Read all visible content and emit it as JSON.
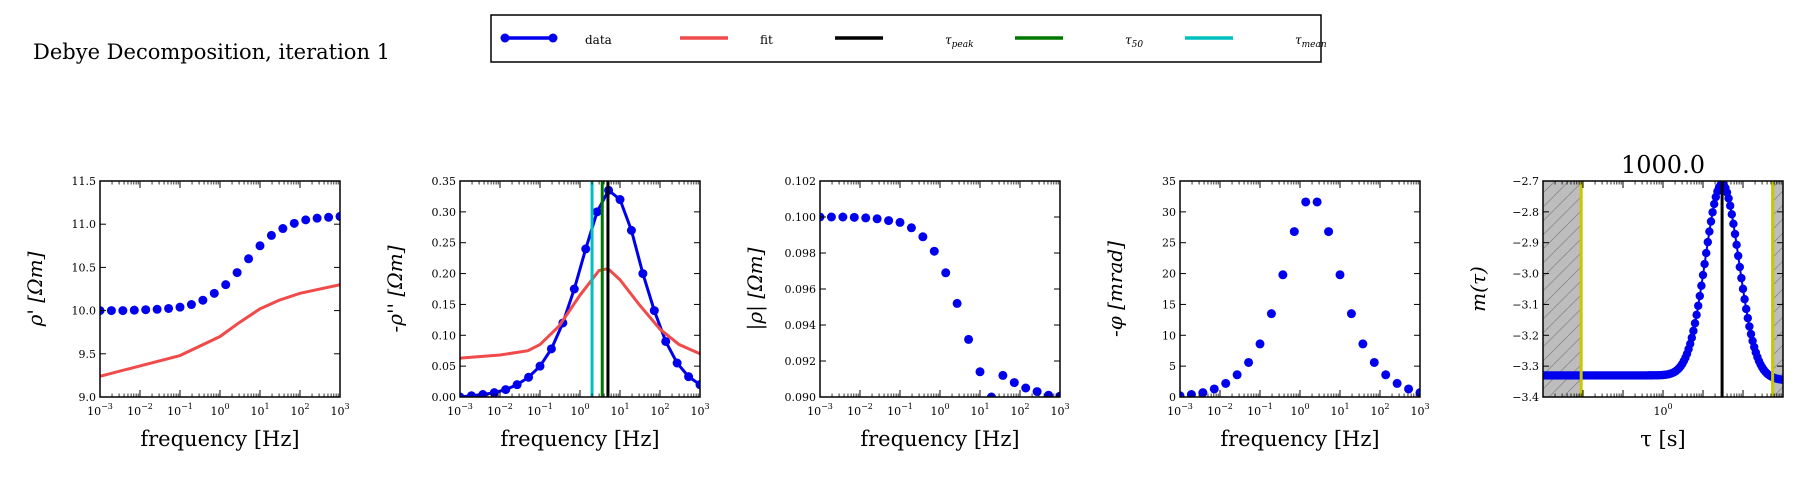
{
  "figure": {
    "suptitle": "Debye Decomposition, iteration 1"
  },
  "legend": {
    "entries": [
      {
        "key": "data",
        "label": "data",
        "color": "#0000ee",
        "style": "line-marker"
      },
      {
        "key": "fit",
        "label": "fit",
        "color": "#f04a4a",
        "style": "line"
      },
      {
        "key": "tau_peak",
        "label": "τpeak",
        "base": "τ",
        "sub": "peak",
        "color": "#000000",
        "style": "line"
      },
      {
        "key": "tau_50",
        "label": "τ50",
        "base": "τ",
        "sub": "50",
        "color": "#007800",
        "style": "line"
      },
      {
        "key": "tau_mean",
        "label": "τmean",
        "base": "τ",
        "sub": "mean",
        "color": "#00c0c0",
        "style": "line"
      }
    ]
  },
  "chart_data": [
    {
      "type": "scatter",
      "name": "rho_real",
      "xlabel": "frequency [Hz]",
      "ylabel": "ρ' [Ωm]",
      "xscale": "log",
      "xlim": [
        0.001,
        1000
      ],
      "ylim": [
        9.0,
        11.5
      ],
      "yticks": [
        9.0,
        9.5,
        10.0,
        10.5,
        11.0,
        11.5
      ],
      "ytick_labels": [
        "9.0",
        "9.5",
        "10.0",
        "10.5",
        "11.0",
        "11.5"
      ],
      "series": [
        {
          "key": "data",
          "style": "markers",
          "color": "#0000ee",
          "x": [
            0.001,
            0.00193,
            0.00373,
            0.0072,
            0.0139,
            0.0268,
            0.0518,
            0.1,
            0.193,
            0.373,
            0.72,
            1.39,
            2.68,
            5.18,
            10.0,
            19.3,
            37.3,
            72.0,
            139,
            268,
            518,
            1000
          ],
          "y": [
            10.0,
            10.0,
            10.0,
            10.005,
            10.01,
            10.015,
            10.025,
            10.04,
            10.07,
            10.12,
            10.2,
            10.3,
            10.44,
            10.6,
            10.75,
            10.87,
            10.95,
            11.01,
            11.05,
            11.07,
            11.08,
            11.09
          ]
        },
        {
          "key": "fit",
          "style": "line",
          "color": "#f04a4a",
          "x": [
            0.001,
            0.01,
            0.1,
            1,
            3,
            10,
            30,
            100,
            1000
          ],
          "y": [
            9.24,
            9.36,
            9.48,
            9.7,
            9.86,
            10.02,
            10.12,
            10.2,
            10.3
          ]
        }
      ]
    },
    {
      "type": "line",
      "name": "rho_imag",
      "xlabel": "frequency [Hz]",
      "ylabel": "-ρ'' [Ωm]",
      "xscale": "log",
      "xlim": [
        0.001,
        1000
      ],
      "ylim": [
        0.0,
        0.35
      ],
      "yticks": [
        0.0,
        0.05,
        0.1,
        0.15,
        0.2,
        0.25,
        0.3,
        0.35
      ],
      "ytick_labels": [
        "0.00",
        "0.05",
        "0.10",
        "0.15",
        "0.20",
        "0.25",
        "0.30",
        "0.35"
      ],
      "series": [
        {
          "key": "data",
          "style": "line-markers",
          "color": "#0000ee",
          "x": [
            0.001,
            0.00193,
            0.00373,
            0.0072,
            0.0139,
            0.0268,
            0.0518,
            0.1,
            0.193,
            0.373,
            0.72,
            1.39,
            2.68,
            5.18,
            10.0,
            19.3,
            37.3,
            72.0,
            139,
            268,
            518,
            1000
          ],
          "y": [
            0.0,
            0.002,
            0.004,
            0.007,
            0.012,
            0.02,
            0.032,
            0.05,
            0.078,
            0.12,
            0.175,
            0.24,
            0.3,
            0.335,
            0.32,
            0.27,
            0.2,
            0.14,
            0.09,
            0.055,
            0.033,
            0.02
          ]
        },
        {
          "key": "fit",
          "style": "line",
          "color": "#f04a4a",
          "x": [
            0.001,
            0.01,
            0.05,
            0.1,
            0.3,
            1,
            3,
            5,
            10,
            30,
            100,
            300,
            1000
          ],
          "y": [
            0.063,
            0.068,
            0.075,
            0.085,
            0.115,
            0.165,
            0.205,
            0.208,
            0.19,
            0.15,
            0.11,
            0.085,
            0.07
          ]
        }
      ],
      "vlines": [
        {
          "key": "tau_mean",
          "x": 2.0,
          "color": "#00c0c0"
        },
        {
          "key": "tau_50",
          "x": 3.6,
          "color": "#007800"
        },
        {
          "key": "tau_peak",
          "x": 5.0,
          "color": "#000000"
        }
      ]
    },
    {
      "type": "scatter",
      "name": "rho_abs",
      "xlabel": "frequency [Hz]",
      "ylabel": "|ρ| [Ωm]",
      "xscale": "log",
      "xlim": [
        0.001,
        1000
      ],
      "ylim": [
        0.09,
        0.102
      ],
      "yticks": [
        0.09,
        0.092,
        0.094,
        0.096,
        0.098,
        0.1,
        0.102
      ],
      "ytick_labels": [
        "0.090",
        "0.092",
        "0.094",
        "0.096",
        "0.098",
        "0.100",
        "0.102"
      ],
      "series": [
        {
          "key": "data",
          "style": "markers",
          "color": "#0000ee",
          "x": [
            0.001,
            0.00193,
            0.00373,
            0.0072,
            0.0139,
            0.0268,
            0.0518,
            0.1,
            0.193,
            0.373,
            0.72,
            1.39,
            2.68,
            5.18,
            10.0,
            19.3,
            37.3,
            72.0,
            139,
            268,
            518,
            1000
          ],
          "y": [
            0.1,
            0.1,
            0.1,
            0.09998,
            0.09995,
            0.0999,
            0.0998,
            0.0997,
            0.0994,
            0.0989,
            0.0981,
            0.0969,
            0.0952,
            0.0932,
            0.0914,
            0.09,
            0.0912,
            0.0908,
            0.0905,
            0.0903,
            0.0901,
            0.09005
          ]
        }
      ]
    },
    {
      "type": "scatter",
      "name": "phase",
      "xlabel": "frequency [Hz]",
      "ylabel": "-φ [mrad]",
      "xscale": "log",
      "xlim": [
        0.001,
        1000
      ],
      "ylim": [
        0,
        35
      ],
      "yticks": [
        0,
        5,
        10,
        15,
        20,
        25,
        30,
        35
      ],
      "ytick_labels": [
        "0",
        "5",
        "10",
        "15",
        "20",
        "25",
        "30",
        "35"
      ],
      "series": [
        {
          "key": "data",
          "style": "markers",
          "color": "#0000ee",
          "x": [
            0.001,
            0.00193,
            0.00373,
            0.0072,
            0.0139,
            0.0268,
            0.0518,
            0.1,
            0.193,
            0.373,
            0.72,
            1.39,
            2.68,
            5.18,
            10.0,
            19.3,
            37.3,
            72.0,
            139,
            268,
            518,
            1000
          ],
          "y": [
            0.2,
            0.4,
            0.7,
            1.3,
            2.2,
            3.6,
            5.6,
            8.6,
            13.5,
            19.8,
            26.8,
            31.6,
            31.6,
            26.8,
            19.8,
            13.5,
            8.6,
            5.6,
            3.6,
            2.2,
            1.3,
            0.7
          ]
        }
      ]
    },
    {
      "type": "line",
      "name": "relaxation_time_distribution",
      "title": "1000.0",
      "xlabel": "τ [s]",
      "ylabel": "m(τ)",
      "xscale": "log",
      "xlim": [
        0.001,
        1000
      ],
      "xticks": [
        1
      ],
      "xtick_labels": [
        "10^0"
      ],
      "ylim": [
        -3.4,
        -2.7
      ],
      "yticks": [
        -3.4,
        -3.3,
        -3.2,
        -3.1,
        -3.0,
        -2.9,
        -2.8,
        -2.7
      ],
      "ytick_labels": [
        "−3.4",
        "−3.3",
        "−3.2",
        "−3.1",
        "−3.0",
        "−2.9",
        "−2.8",
        "−2.7"
      ],
      "peak_x": 30,
      "peak_y": -2.71,
      "baseline_y": -3.33,
      "shaded_regions": [
        [
          0.001,
          0.009
        ],
        [
          550,
          1000
        ]
      ],
      "vlines": [
        {
          "x": 0.009,
          "color": "#c8c800"
        },
        {
          "x": 30,
          "color": "#000000"
        },
        {
          "x": 550,
          "color": "#c8c800"
        }
      ]
    }
  ]
}
